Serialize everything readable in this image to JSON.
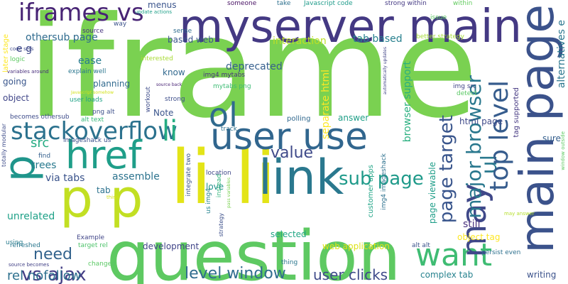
{
  "words": [
    {
      "text": "iframe",
      "color": "#7ad151"
    },
    {
      "text": "myserver main",
      "color": "#443983"
    },
    {
      "text": "main page",
      "color": "#3b528b"
    },
    {
      "text": "question",
      "color": "#5ec962"
    },
    {
      "text": "li li",
      "color": "#e3e418"
    },
    {
      "text": "p p",
      "color": "#c2df23"
    },
    {
      "text": "link",
      "color": "#2a788e"
    },
    {
      "text": "user use",
      "color": "#31668e"
    },
    {
      "text": "href",
      "color": "#1f9e89"
    },
    {
      "text": "iframes vs",
      "color": "#482475"
    },
    {
      "text": "stackoverflow",
      "color": "#2c728e"
    },
    {
      "text": "want",
      "color": "#3fbc73"
    },
    {
      "text": "ol",
      "color": "#306a8e"
    },
    {
      "text": "li",
      "color": "#25ac82"
    },
    {
      "text": "may",
      "color": "#3f4889"
    },
    {
      "text": "p",
      "color": "#1f958b"
    },
    {
      "text": "ul",
      "color": "#2a788e"
    },
    {
      "text": "top level",
      "color": "#365c8d"
    },
    {
      "text": "major browser",
      "color": "#2a788e"
    },
    {
      "text": "page target",
      "color": "#39558c"
    },
    {
      "text": "sub page",
      "color": "#1f9a8a"
    },
    {
      "text": "value",
      "color": "#3e4989"
    },
    {
      "text": "vs ajax",
      "color": "#433e85"
    },
    {
      "text": "need",
      "color": "#33638d"
    },
    {
      "text": "level window",
      "color": "#2f6c8e"
    },
    {
      "text": "user clicks",
      "color": "#3e4a89"
    },
    {
      "text": "rel nofollow",
      "color": "#2d708e"
    },
    {
      "text": "src",
      "color": "#25ab82"
    },
    {
      "text": "othersub page",
      "color": "#2f6b8e"
    },
    {
      "text": "e g",
      "color": "#3e4989"
    },
    {
      "text": "alternatives e",
      "color": "#2a768e"
    },
    {
      "text": "interaction",
      "color": "#bddf26"
    },
    {
      "text": "tab based",
      "color": "#27808e"
    },
    {
      "text": "based web",
      "color": "#3a548c"
    },
    {
      "text": "ease",
      "color": "#287c8e"
    },
    {
      "text": "deprecated",
      "color": "#355f8d"
    },
    {
      "text": "browser support",
      "color": "#29af7f"
    },
    {
      "text": "separate html",
      "color": "#fde725"
    },
    {
      "text": "html page",
      "color": "#3e4989"
    },
    {
      "text": "answer",
      "color": "#1f9f88"
    },
    {
      "text": "sure",
      "color": "#355f8d"
    },
    {
      "text": "assemble",
      "color": "#2c738e"
    },
    {
      "text": "trees",
      "color": "#29798e"
    },
    {
      "text": "via tabs",
      "color": "#3a538b"
    },
    {
      "text": "unrelated",
      "color": "#1fa188"
    },
    {
      "text": "development",
      "color": "#404588"
    },
    {
      "text": "selected",
      "color": "#22a785"
    },
    {
      "text": "web application",
      "color": "#dde318"
    },
    {
      "text": "complex tab",
      "color": "#26828e"
    },
    {
      "text": "writing",
      "color": "#3b528b"
    },
    {
      "text": "still",
      "color": "#472f7d"
    },
    {
      "text": "object tag",
      "color": "#fde725"
    },
    {
      "text": "page viewable",
      "color": "#1f9e89"
    },
    {
      "text": "customer apps",
      "color": "#20a486"
    },
    {
      "text": "img4 imageshack",
      "color": "#2d718e"
    },
    {
      "text": "love",
      "color": "#21918c"
    },
    {
      "text": "polling",
      "color": "#31688e"
    },
    {
      "text": "tab",
      "color": "#2c728e"
    },
    {
      "text": "Note",
      "color": "#3a548c"
    },
    {
      "text": "know",
      "color": "#31688e"
    },
    {
      "text": "planning",
      "color": "#30698e"
    },
    {
      "text": "object",
      "color": "#404688"
    },
    {
      "text": "going",
      "color": "#39568c"
    },
    {
      "text": "img4 mytabs",
      "color": "#46327e"
    },
    {
      "text": "img src",
      "color": "#414487"
    },
    {
      "text": "tag supported",
      "color": "#453882"
    },
    {
      "text": "better strategy",
      "color": "#a5db36"
    },
    {
      "text": "interested",
      "color": "#a8db34"
    },
    {
      "text": "explain well",
      "color": "#2a768e"
    },
    {
      "text": "user loads",
      "color": "#20a386"
    },
    {
      "text": "png alt",
      "color": "#3c4f8a"
    },
    {
      "text": "alt text",
      "color": "#35b779"
    },
    {
      "text": "imageshack us",
      "color": "#3b518b"
    },
    {
      "text": "menus",
      "color": "#3a548c"
    },
    {
      "text": "someone",
      "color": "#471063"
    },
    {
      "text": "take",
      "color": "#2d708e"
    },
    {
      "text": "Javascript code",
      "color": "#1e9b8a"
    },
    {
      "text": "strong within",
      "color": "#443983"
    },
    {
      "text": "within",
      "color": "#63cb5f"
    },
    {
      "text": "issue",
      "color": "#5ec962"
    },
    {
      "text": "source",
      "color": "#46337f"
    },
    {
      "text": "sense",
      "color": "#2f6b8e"
    },
    {
      "text": "way",
      "color": "#3b528b"
    },
    {
      "text": "update actions",
      "color": "#1fa088"
    },
    {
      "text": "later stage",
      "color": "#fde725"
    },
    {
      "text": "code sets",
      "color": "#3e4989"
    },
    {
      "text": "logic",
      "color": "#5ec962"
    },
    {
      "text": "variables around",
      "color": "#472d7b"
    },
    {
      "text": "Javascript somehow",
      "color": "#d2e21b"
    },
    {
      "text": "becomes othersub",
      "color": "#3e4c8a"
    },
    {
      "text": "source back",
      "color": "#482374"
    },
    {
      "text": "strong",
      "color": "#3d4e8a"
    },
    {
      "text": "mytabs png",
      "color": "#3dbc74"
    },
    {
      "text": "detect",
      "color": "#5ac864"
    },
    {
      "text": "workout",
      "color": "#3e4c8a"
    },
    {
      "text": "location",
      "color": "#3f4788"
    },
    {
      "text": "track",
      "color": "#2d708e"
    },
    {
      "text": "integrate two",
      "color": "#3a548c"
    },
    {
      "text": "us img4",
      "color": "#25848e"
    },
    {
      "text": "persist even",
      "color": "#2d708e"
    },
    {
      "text": "may answer",
      "color": "#b5de2b"
    },
    {
      "text": "instead",
      "color": "#31b57b"
    },
    {
      "text": "find",
      "color": "#34608d"
    },
    {
      "text": "think",
      "color": "#d5e21a"
    },
    {
      "text": "Example",
      "color": "#404588"
    },
    {
      "text": "target rel",
      "color": "#4ec36b"
    },
    {
      "text": "refreshed",
      "color": "#2a778e"
    },
    {
      "text": "changed",
      "color": "#5ac864"
    },
    {
      "text": "using",
      "color": "#287c8e"
    },
    {
      "text": "source becomes",
      "color": "#424186"
    },
    {
      "text": "strategy",
      "color": "#3c4f8a"
    },
    {
      "text": "thing",
      "color": "#2a768e"
    },
    {
      "text": "alt alt",
      "color": "#3b528b"
    },
    {
      "text": "totally modular",
      "color": "#3e4c8a"
    },
    {
      "text": "automatically updates",
      "color": "#414487"
    },
    {
      "text": "pass variables",
      "color": "#7ad151"
    },
    {
      "text": "window outside",
      "color": "#5ec962"
    }
  ]
}
